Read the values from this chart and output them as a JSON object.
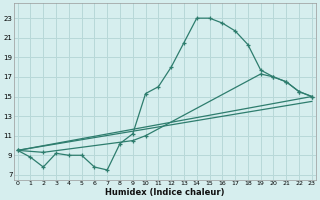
{
  "xlabel": "Humidex (Indice chaleur)",
  "bg_color": "#d6eeee",
  "grid_color": "#b8d8d8",
  "line_color": "#2e7d6e",
  "yticks": [
    7,
    9,
    11,
    13,
    15,
    17,
    19,
    21,
    23
  ],
  "xticks": [
    0,
    1,
    2,
    3,
    4,
    5,
    6,
    7,
    8,
    9,
    10,
    11,
    12,
    13,
    14,
    15,
    16,
    17,
    18,
    19,
    20,
    21,
    22,
    23
  ],
  "line1_x": [
    0,
    1,
    2,
    3,
    4,
    5,
    6,
    7,
    8,
    9,
    10,
    11,
    12,
    13,
    14,
    15,
    16,
    17,
    18,
    19,
    20,
    21,
    22,
    23
  ],
  "line1_y": [
    9.5,
    8.8,
    7.8,
    9.2,
    9.0,
    9.0,
    7.8,
    7.5,
    10.2,
    11.2,
    15.3,
    16.0,
    18.0,
    20.5,
    23.0,
    23.0,
    22.5,
    21.7,
    20.3,
    17.7,
    17.0,
    16.5,
    15.5,
    15.0
  ],
  "line2_x": [
    0,
    2,
    9,
    10,
    19,
    20,
    21,
    22,
    23
  ],
  "line2_y": [
    9.5,
    9.3,
    10.5,
    11.0,
    17.3,
    17.0,
    16.5,
    15.5,
    15.0
  ],
  "line3_x": [
    0,
    23
  ],
  "line3_y": [
    9.5,
    15.0
  ],
  "line4_x": [
    0,
    23
  ],
  "line4_y": [
    9.5,
    14.5
  ],
  "xlim_min": -0.3,
  "xlim_max": 23.3,
  "ylim_min": 6.5,
  "ylim_max": 24.5
}
